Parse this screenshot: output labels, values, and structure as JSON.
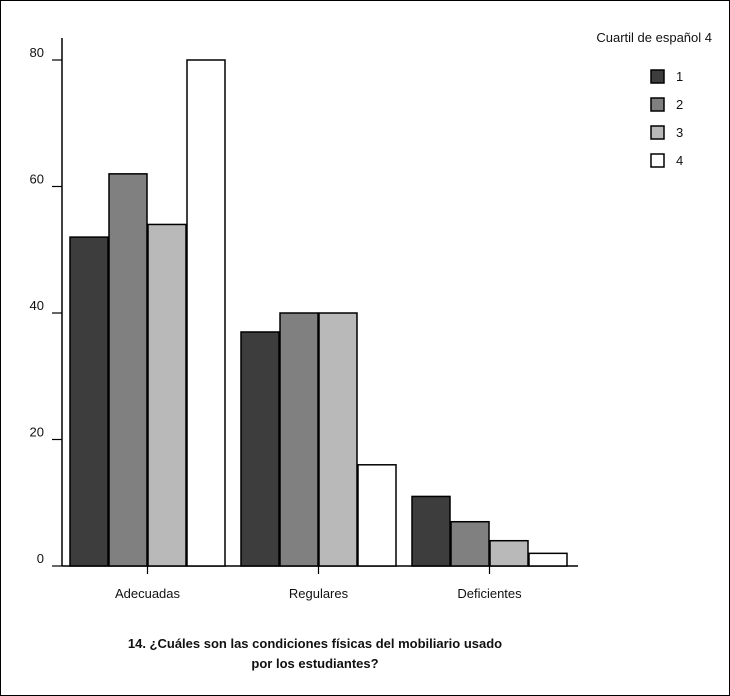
{
  "chart_data": {
    "type": "bar",
    "categories": [
      "Adecuadas",
      "Regulares",
      "Deficientes"
    ],
    "series": [
      {
        "name": "1",
        "values": [
          52,
          37,
          11
        ],
        "color": "#3d3d3d"
      },
      {
        "name": "2",
        "values": [
          62,
          40,
          7
        ],
        "color": "#808080"
      },
      {
        "name": "3",
        "values": [
          54,
          40,
          4
        ],
        "color": "#b9b9b9"
      },
      {
        "name": "4",
        "values": [
          80,
          16,
          2
        ],
        "color": "#ffffff"
      }
    ],
    "yticks": [
      0,
      20,
      40,
      60,
      80
    ],
    "ylim": [
      0,
      80
    ],
    "legend_title": "Cuartil de español 4",
    "legend_position": "top-right",
    "caption_lines": [
      "14. ¿Cuáles son las condiciones físicas del mobiliario usado",
      "por los estudiantes?"
    ],
    "grid": false
  }
}
